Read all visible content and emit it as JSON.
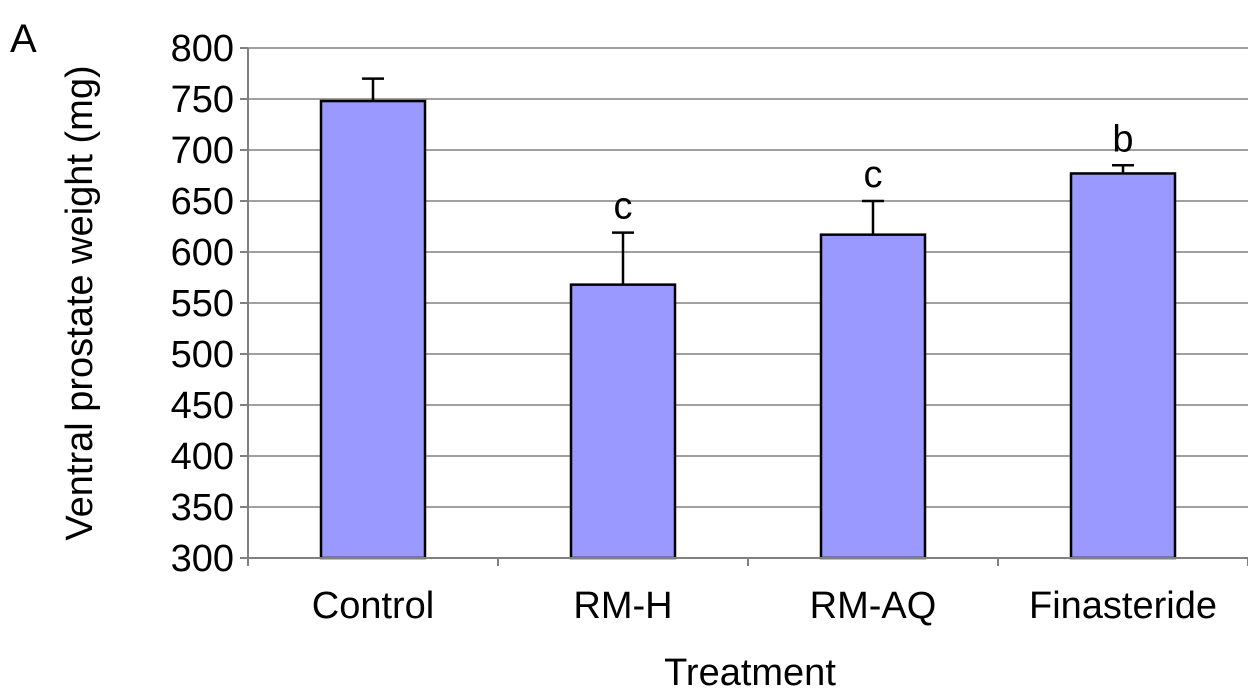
{
  "panel_label": "A",
  "colors": {
    "bar_fill": "#9999ff",
    "bar_stroke": "#000000",
    "grid": "#808080"
  },
  "chart_data": {
    "type": "bar",
    "title": "",
    "xlabel": "Treatment",
    "ylabel": "Ventral prostate weight (mg)",
    "ylim": [
      300,
      800
    ],
    "yticks": [
      300,
      350,
      400,
      450,
      500,
      550,
      600,
      650,
      700,
      750,
      800
    ],
    "grid": true,
    "categories": [
      "Control",
      "RM-H",
      "RM-AQ",
      "Finasteride"
    ],
    "values": [
      748,
      568,
      617,
      677
    ],
    "errors": [
      22,
      51,
      33,
      8
    ],
    "annotations": [
      "",
      "c",
      "c",
      "b"
    ]
  }
}
